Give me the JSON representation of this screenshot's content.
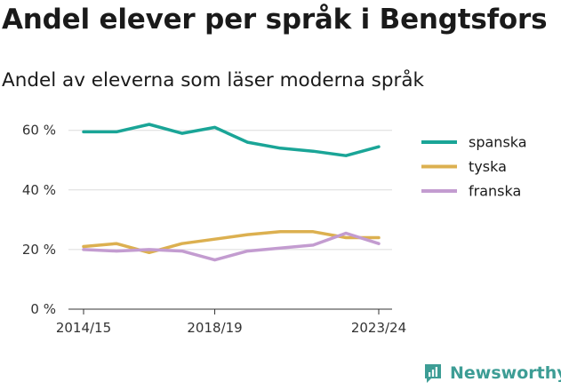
{
  "title": "Andel elever per språk i Bengtsfors",
  "subtitle": "Andel av eleverna som läser moderna språk",
  "brand": {
    "name": "Newsworthy",
    "icon": "chart-logo-icon",
    "color": "#3d9d95"
  },
  "chart_data": {
    "type": "line",
    "x": [
      "2014/15",
      "2015/16",
      "2016/17",
      "2017/18",
      "2018/19",
      "2019/20",
      "2020/21",
      "2021/22",
      "2022/23",
      "2023/24"
    ],
    "x_tick_labels": [
      "2014/15",
      "2018/19",
      "2023/24"
    ],
    "y_tick_labels": [
      "0 %",
      "20 %",
      "40 %",
      "60 %"
    ],
    "y_ticks": [
      0,
      20,
      40,
      60
    ],
    "ylim": [
      0,
      62
    ],
    "grid": true,
    "legend_position": "right",
    "series": [
      {
        "name": "spanska",
        "color": "#1aa597",
        "values": [
          59.5,
          59.5,
          62,
          59,
          61,
          56,
          54,
          53,
          51.5,
          54.5
        ]
      },
      {
        "name": "tyska",
        "color": "#dcb050",
        "values": [
          21,
          22,
          19,
          22,
          23.5,
          25,
          26,
          26,
          24,
          24
        ]
      },
      {
        "name": "franska",
        "color": "#c39cd0",
        "values": [
          20,
          19.5,
          20,
          19.5,
          16.5,
          19.5,
          20.5,
          21.5,
          25.5,
          22
        ]
      }
    ]
  }
}
